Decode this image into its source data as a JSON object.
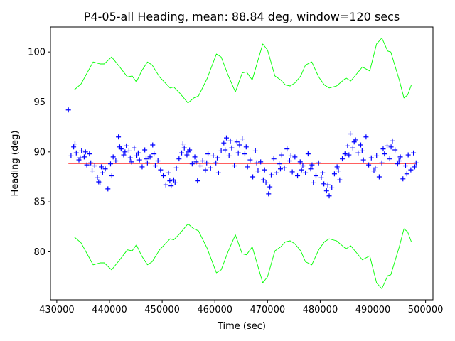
{
  "chart_data": {
    "type": "scatter",
    "title": "P4-05-all Heading, mean: 88.84 deg, window=120 secs",
    "xlabel": "Time (sec)",
    "ylabel": "Heading (deg)",
    "xlim": [
      428800,
      501400
    ],
    "ylim": [
      75.2,
      102.5
    ],
    "xticks": [
      430000,
      440000,
      450000,
      460000,
      470000,
      480000,
      490000,
      500000
    ],
    "xtick_labels": [
      "430000",
      "440000",
      "450000",
      "460000",
      "470000",
      "480000",
      "490000",
      "500000"
    ],
    "yticks": [
      80,
      85,
      90,
      95,
      100
    ],
    "ytick_labels": [
      "80",
      "85",
      "90",
      "95",
      "100"
    ],
    "grid": false,
    "colors": {
      "points": "#0000ff",
      "mean": "#ff0000",
      "band": "#00ff00"
    },
    "mean": {
      "value": 88.84,
      "x_range": [
        432200,
        498400
      ]
    },
    "series": [
      {
        "name": "heading",
        "marker": "+",
        "points": [
          [
            432200,
            94.2
          ],
          [
            432700,
            89.6
          ],
          [
            433200,
            90.5
          ],
          [
            433700,
            89.9
          ],
          [
            434200,
            89.2
          ],
          [
            434700,
            90.1
          ],
          [
            435200,
            89.5
          ],
          [
            435700,
            88.7
          ],
          [
            436200,
            89.8
          ],
          [
            436700,
            88.1
          ],
          [
            437200,
            88.6
          ],
          [
            437700,
            87.4
          ],
          [
            438200,
            86.9
          ],
          [
            438700,
            87.9
          ],
          [
            439200,
            88.3
          ],
          [
            439700,
            86.3
          ],
          [
            440200,
            88.8
          ],
          [
            440700,
            89.5
          ],
          [
            441200,
            89.1
          ],
          [
            441700,
            91.5
          ],
          [
            442200,
            90.3
          ],
          [
            442700,
            89.7
          ],
          [
            443200,
            90.6
          ],
          [
            443700,
            90.1
          ],
          [
            444200,
            89.0
          ],
          [
            444700,
            90.4
          ],
          [
            445200,
            89.6
          ],
          [
            445700,
            89.2
          ],
          [
            446200,
            88.5
          ],
          [
            446700,
            90.2
          ],
          [
            447200,
            88.9
          ],
          [
            447700,
            89.5
          ],
          [
            448200,
            90.7
          ],
          [
            448700,
            88.6
          ],
          [
            449200,
            89.1
          ],
          [
            449700,
            88.2
          ],
          [
            450200,
            87.6
          ],
          [
            450700,
            86.7
          ],
          [
            451200,
            87.9
          ],
          [
            451700,
            86.6
          ],
          [
            452200,
            87.2
          ],
          [
            452700,
            88.4
          ],
          [
            453200,
            89.3
          ],
          [
            453700,
            89.9
          ],
          [
            454200,
            90.4
          ],
          [
            454700,
            89.7
          ],
          [
            455200,
            90.2
          ],
          [
            455700,
            88.8
          ],
          [
            456200,
            89.5
          ],
          [
            456700,
            87.1
          ],
          [
            457200,
            88.6
          ],
          [
            457700,
            89.1
          ],
          [
            458200,
            88.2
          ],
          [
            458700,
            89.8
          ],
          [
            459200,
            88.4
          ],
          [
            459700,
            89.6
          ],
          [
            460200,
            88.9
          ],
          [
            460700,
            87.9
          ],
          [
            461200,
            90.1
          ],
          [
            461700,
            90.9
          ],
          [
            462200,
            91.4
          ],
          [
            462700,
            89.6
          ],
          [
            463200,
            90.4
          ],
          [
            463700,
            88.6
          ],
          [
            464200,
            91.0
          ],
          [
            464700,
            90.7
          ],
          [
            465200,
            91.3
          ],
          [
            465700,
            89.8
          ],
          [
            466200,
            88.5
          ],
          [
            466700,
            89.2
          ],
          [
            467200,
            87.5
          ],
          [
            467700,
            90.1
          ],
          [
            468200,
            88.1
          ],
          [
            468700,
            89.0
          ],
          [
            469200,
            87.2
          ],
          [
            469700,
            86.9
          ],
          [
            470200,
            85.8
          ],
          [
            470700,
            87.7
          ],
          [
            471200,
            89.3
          ],
          [
            471700,
            87.9
          ],
          [
            472200,
            88.8
          ],
          [
            472700,
            89.7
          ],
          [
            473200,
            88.4
          ],
          [
            473700,
            90.3
          ],
          [
            474200,
            89.1
          ],
          [
            474700,
            88.0
          ],
          [
            475200,
            89.5
          ],
          [
            475700,
            87.6
          ],
          [
            476200,
            89.0
          ],
          [
            476700,
            88.6
          ],
          [
            477200,
            87.9
          ],
          [
            477700,
            89.8
          ],
          [
            478200,
            88.3
          ],
          [
            478700,
            86.9
          ],
          [
            479200,
            87.6
          ],
          [
            479700,
            88.9
          ],
          [
            480200,
            87.4
          ],
          [
            480700,
            86.8
          ],
          [
            481200,
            86.1
          ],
          [
            481700,
            85.6
          ],
          [
            482200,
            86.4
          ],
          [
            482700,
            87.8
          ],
          [
            483200,
            88.5
          ],
          [
            483700,
            87.2
          ],
          [
            484200,
            89.3
          ],
          [
            484700,
            89.8
          ],
          [
            485200,
            90.6
          ],
          [
            485700,
            91.8
          ],
          [
            486200,
            90.4
          ],
          [
            486700,
            91.2
          ],
          [
            487200,
            89.9
          ],
          [
            487700,
            90.7
          ],
          [
            488200,
            89.2
          ],
          [
            488700,
            91.5
          ],
          [
            489200,
            88.7
          ],
          [
            489700,
            89.4
          ],
          [
            490200,
            88.1
          ],
          [
            490700,
            89.6
          ],
          [
            491200,
            87.5
          ],
          [
            491700,
            88.9
          ],
          [
            492200,
            89.8
          ],
          [
            492700,
            90.6
          ],
          [
            493200,
            89.3
          ],
          [
            493700,
            91.1
          ],
          [
            494200,
            90.2
          ],
          [
            494700,
            88.8
          ],
          [
            495200,
            89.5
          ],
          [
            495700,
            87.3
          ],
          [
            496200,
            88.6
          ],
          [
            496700,
            89.7
          ],
          [
            497200,
            88.2
          ],
          [
            497700,
            89.9
          ],
          [
            498200,
            88.9
          ],
          [
            433450,
            90.8
          ],
          [
            434450,
            89.4
          ],
          [
            435450,
            90.0
          ],
          [
            436450,
            88.9
          ],
          [
            437950,
            87.0
          ],
          [
            438450,
            88.5
          ],
          [
            440450,
            87.6
          ],
          [
            441950,
            90.5
          ],
          [
            442950,
            90.0
          ],
          [
            443950,
            89.4
          ],
          [
            445450,
            89.9
          ],
          [
            446950,
            89.3
          ],
          [
            448450,
            89.8
          ],
          [
            451450,
            87.1
          ],
          [
            452450,
            86.9
          ],
          [
            453950,
            90.8
          ],
          [
            454950,
            90.0
          ],
          [
            456450,
            89.0
          ],
          [
            458450,
            88.9
          ],
          [
            460450,
            89.4
          ],
          [
            461950,
            90.2
          ],
          [
            462950,
            91.1
          ],
          [
            464450,
            89.9
          ],
          [
            465950,
            90.5
          ],
          [
            467950,
            88.9
          ],
          [
            469450,
            88.2
          ],
          [
            470450,
            86.5
          ],
          [
            472450,
            88.3
          ],
          [
            474450,
            89.6
          ],
          [
            476450,
            88.2
          ],
          [
            478450,
            88.7
          ],
          [
            480450,
            87.9
          ],
          [
            481450,
            86.7
          ],
          [
            483450,
            88.1
          ],
          [
            485450,
            89.7
          ],
          [
            486450,
            91.0
          ],
          [
            487950,
            90.1
          ],
          [
            490450,
            88.4
          ],
          [
            491950,
            90.3
          ],
          [
            493450,
            90.5
          ],
          [
            494950,
            89.1
          ],
          [
            496450,
            87.8
          ],
          [
            497950,
            88.5
          ]
        ]
      },
      {
        "name": "upper-band",
        "points": [
          [
            433300,
            96.2
          ],
          [
            434600,
            96.8
          ],
          [
            436900,
            99.0
          ],
          [
            438200,
            98.8
          ],
          [
            439000,
            98.8
          ],
          [
            440400,
            99.5
          ],
          [
            441800,
            98.6
          ],
          [
            443400,
            97.5
          ],
          [
            444300,
            97.6
          ],
          [
            445100,
            97.0
          ],
          [
            446100,
            98.1
          ],
          [
            447200,
            99.0
          ],
          [
            448100,
            98.7
          ],
          [
            449500,
            97.5
          ],
          [
            451500,
            96.4
          ],
          [
            452200,
            96.5
          ],
          [
            453300,
            95.9
          ],
          [
            454900,
            94.9
          ],
          [
            456000,
            95.4
          ],
          [
            456900,
            95.6
          ],
          [
            458500,
            97.3
          ],
          [
            460300,
            99.8
          ],
          [
            461200,
            99.5
          ],
          [
            462500,
            97.7
          ],
          [
            463900,
            96.0
          ],
          [
            465200,
            97.9
          ],
          [
            466000,
            98.0
          ],
          [
            467100,
            97.2
          ],
          [
            469100,
            100.8
          ],
          [
            470000,
            100.2
          ],
          [
            471400,
            97.6
          ],
          [
            472500,
            97.2
          ],
          [
            473400,
            96.7
          ],
          [
            474300,
            96.6
          ],
          [
            475200,
            96.9
          ],
          [
            476300,
            97.6
          ],
          [
            477200,
            98.7
          ],
          [
            478400,
            99.0
          ],
          [
            479700,
            97.5
          ],
          [
            480800,
            96.7
          ],
          [
            481700,
            96.4
          ],
          [
            483100,
            96.6
          ],
          [
            484900,
            97.4
          ],
          [
            485800,
            97.1
          ],
          [
            488000,
            98.5
          ],
          [
            489400,
            98.1
          ],
          [
            490700,
            100.8
          ],
          [
            491700,
            101.4
          ],
          [
            492800,
            100.1
          ],
          [
            493400,
            100.0
          ],
          [
            495000,
            97.2
          ],
          [
            495900,
            95.4
          ],
          [
            496600,
            95.7
          ],
          [
            497300,
            96.7
          ]
        ]
      },
      {
        "name": "lower-band",
        "points": [
          [
            433300,
            81.5
          ],
          [
            434600,
            80.9
          ],
          [
            436900,
            78.7
          ],
          [
            438200,
            78.9
          ],
          [
            439000,
            78.9
          ],
          [
            440400,
            78.2
          ],
          [
            441800,
            79.1
          ],
          [
            443400,
            80.2
          ],
          [
            444300,
            80.1
          ],
          [
            445100,
            80.7
          ],
          [
            446100,
            79.6
          ],
          [
            447200,
            78.7
          ],
          [
            448100,
            79.0
          ],
          [
            449500,
            80.2
          ],
          [
            451500,
            81.3
          ],
          [
            452200,
            81.2
          ],
          [
            453300,
            81.8
          ],
          [
            454900,
            82.8
          ],
          [
            456000,
            82.3
          ],
          [
            456900,
            82.1
          ],
          [
            458500,
            80.4
          ],
          [
            460300,
            77.9
          ],
          [
            461200,
            78.2
          ],
          [
            462500,
            80.0
          ],
          [
            463900,
            81.7
          ],
          [
            465200,
            79.8
          ],
          [
            466000,
            79.7
          ],
          [
            467100,
            80.5
          ],
          [
            469100,
            76.9
          ],
          [
            470000,
            77.5
          ],
          [
            471400,
            80.1
          ],
          [
            472500,
            80.5
          ],
          [
            473400,
            81.0
          ],
          [
            474300,
            81.1
          ],
          [
            475200,
            80.8
          ],
          [
            476300,
            80.1
          ],
          [
            477200,
            79.0
          ],
          [
            478400,
            78.7
          ],
          [
            479700,
            80.2
          ],
          [
            480800,
            81.0
          ],
          [
            481700,
            81.3
          ],
          [
            483100,
            81.1
          ],
          [
            484900,
            80.3
          ],
          [
            485800,
            80.6
          ],
          [
            488000,
            79.2
          ],
          [
            489400,
            79.6
          ],
          [
            490700,
            76.9
          ],
          [
            491700,
            76.3
          ],
          [
            492800,
            77.6
          ],
          [
            493400,
            77.7
          ],
          [
            495000,
            80.5
          ],
          [
            495900,
            82.3
          ],
          [
            496600,
            82.0
          ],
          [
            497300,
            81.0
          ]
        ]
      }
    ]
  }
}
